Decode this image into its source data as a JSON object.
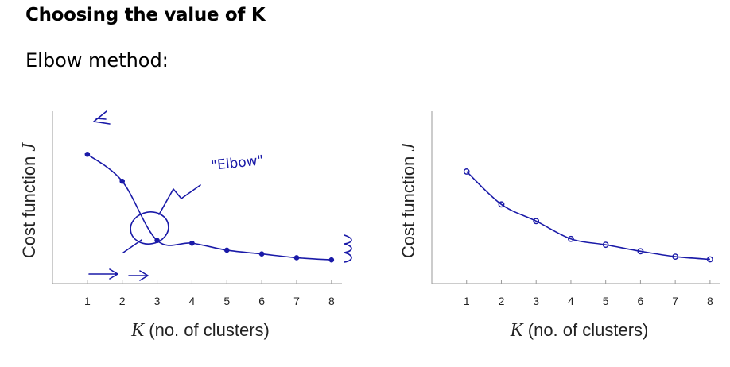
{
  "slide": {
    "title": "Choosing the value of K",
    "subtitle": "Elbow method:"
  },
  "annotations": {
    "elbow_label": "\"Elbow\""
  },
  "colors": {
    "ink": "#1a1aa8",
    "axis": "#999999"
  },
  "chart_data": [
    {
      "type": "line",
      "x": [
        1,
        2,
        3,
        4,
        5,
        6,
        7,
        8
      ],
      "y": [
        2.4,
        1.9,
        0.8,
        0.75,
        0.62,
        0.55,
        0.48,
        0.44
      ],
      "xlabel_var": "K",
      "xlabel": "(no. of clusters)",
      "ylabel": "Cost function",
      "ylabel_var": "J",
      "xlim": [
        0,
        8.3
      ],
      "ylim": [
        0,
        3.2
      ],
      "xticks": [
        1,
        2,
        3,
        4,
        5,
        6,
        7,
        8
      ],
      "grid": false
    },
    {
      "type": "line",
      "x": [
        1,
        2,
        3,
        4,
        5,
        6,
        7,
        8
      ],
      "y": [
        2.08,
        1.47,
        1.16,
        0.83,
        0.72,
        0.6,
        0.5,
        0.45
      ],
      "xlabel_var": "K",
      "xlabel": "(no. of clusters)",
      "ylabel": "Cost function",
      "ylabel_var": "J",
      "xlim": [
        0,
        8.3
      ],
      "ylim": [
        0,
        3.2
      ],
      "xticks": [
        1,
        2,
        3,
        4,
        5,
        6,
        7,
        8
      ],
      "grid": false
    }
  ]
}
